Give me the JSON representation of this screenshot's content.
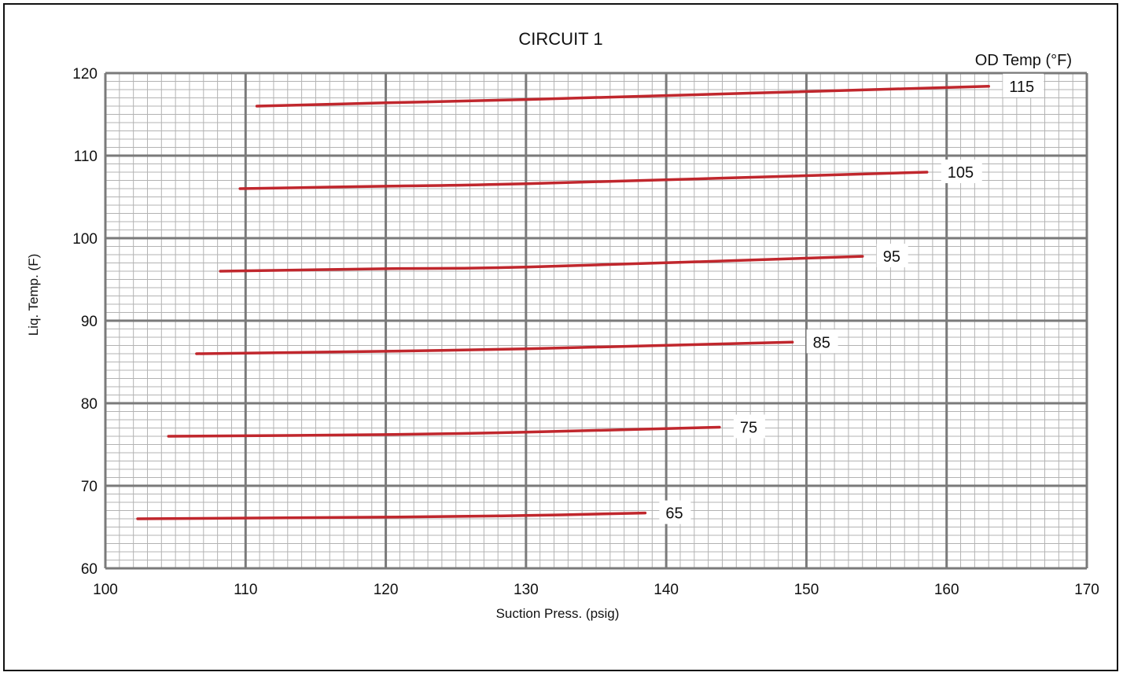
{
  "chart_data": {
    "type": "line",
    "title": "CIRCUIT 1",
    "xlabel": "Suction Press. (psig)",
    "ylabel": "Liq. Temp. (F)",
    "legend_title": "OD Temp (°F)",
    "legend_placement": "top-right",
    "xlim": [
      100,
      170
    ],
    "ylim": [
      60,
      120
    ],
    "x_ticks": [
      100,
      110,
      120,
      130,
      140,
      150,
      160,
      170
    ],
    "y_ticks": [
      60,
      70,
      80,
      90,
      100,
      110,
      120
    ],
    "grid": true,
    "line_color": "#c0272d",
    "series": [
      {
        "name": "65",
        "x": [
          102.3,
          120,
          130,
          138.5
        ],
        "y": [
          66.0,
          66.2,
          66.4,
          66.7
        ]
      },
      {
        "name": "75",
        "x": [
          104.5,
          120,
          130,
          143.8
        ],
        "y": [
          76.0,
          76.2,
          76.5,
          77.1
        ]
      },
      {
        "name": "85",
        "x": [
          106.5,
          120,
          130,
          149.0
        ],
        "y": [
          86.0,
          86.3,
          86.6,
          87.4
        ]
      },
      {
        "name": "95",
        "x": [
          108.2,
          120,
          130,
          154.0
        ],
        "y": [
          96.0,
          96.3,
          96.5,
          97.8
        ]
      },
      {
        "name": "105",
        "x": [
          109.6,
          120,
          130,
          158.6
        ],
        "y": [
          106.0,
          106.3,
          106.6,
          108.0
        ]
      },
      {
        "name": "115",
        "x": [
          110.8,
          120,
          130,
          163.0
        ],
        "y": [
          116.0,
          116.4,
          116.8,
          118.4
        ]
      }
    ]
  }
}
